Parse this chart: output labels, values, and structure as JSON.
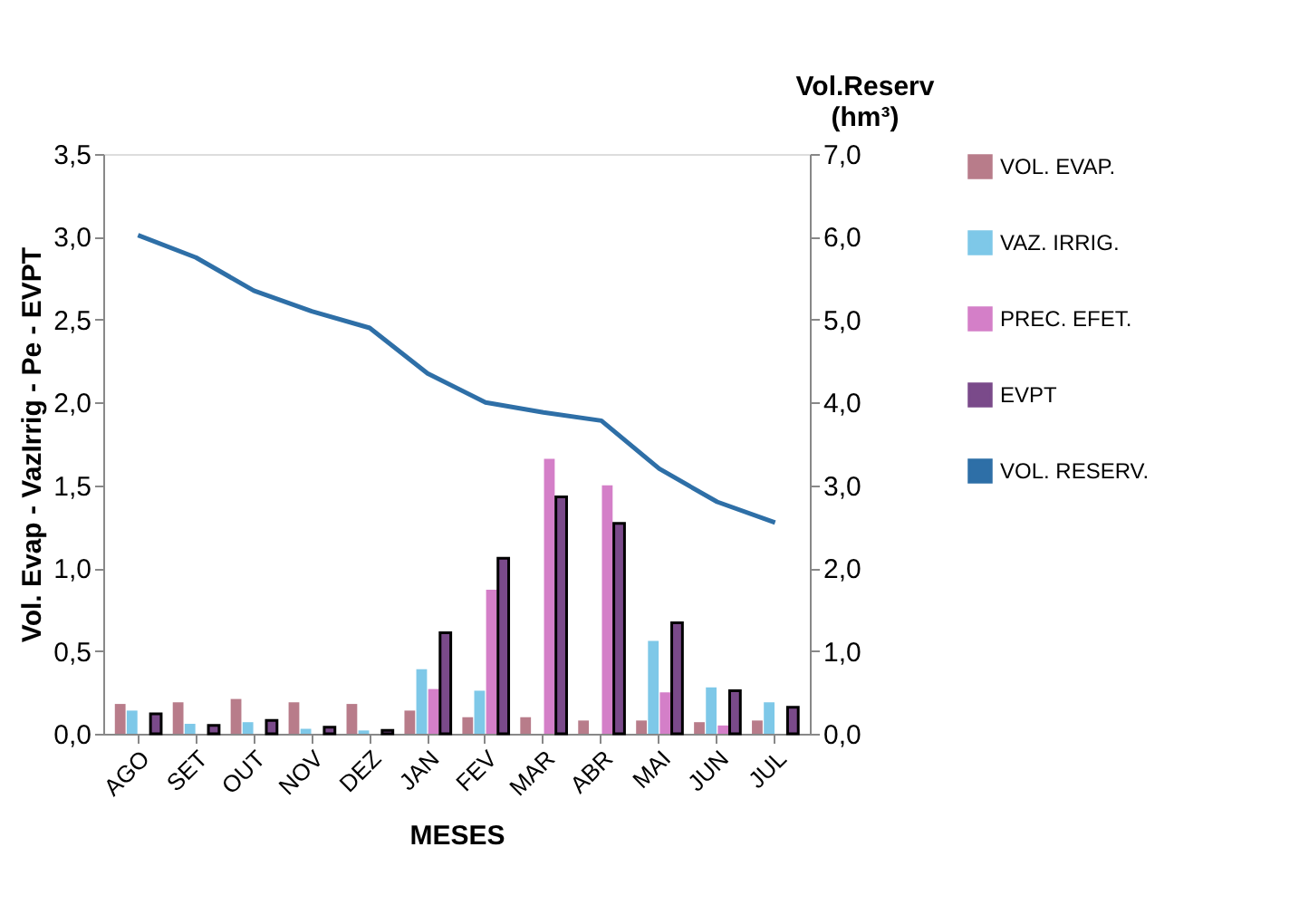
{
  "chart_data": {
    "type": "bar",
    "xlabel": "MESES",
    "ylabel": "Vol. Evap - VazIrrig - Pe - EVPT",
    "y2label": "Vol.Reserv (hm³)",
    "categories": [
      "AGO",
      "SET",
      "OUT",
      "NOV",
      "DEZ",
      "JAN",
      "FEV",
      "MAR",
      "ABR",
      "MAI",
      "JUN",
      "JUL"
    ],
    "series": [
      {
        "name": "VOL. EVAP.",
        "color": "#b87c8a",
        "values": [
          0.18,
          0.19,
          0.21,
          0.19,
          0.18,
          0.14,
          0.1,
          0.1,
          0.08,
          0.08,
          0.07,
          0.08
        ]
      },
      {
        "name": "VAZ. IRRIG.",
        "color": "#7ec8e8",
        "values": [
          0.14,
          0.06,
          0.07,
          0.03,
          0.02,
          0.39,
          0.26,
          0,
          0,
          0.56,
          0.28,
          0.19
        ]
      },
      {
        "name": "PREC. EFET.",
        "color": "#d47fc8",
        "values": [
          0,
          0,
          0,
          0,
          0,
          0.27,
          0.87,
          1.66,
          1.5,
          0.25,
          0.05,
          0
        ]
      },
      {
        "name": "EVPT",
        "color": "#7a4a8a",
        "values": [
          0.12,
          0.05,
          0.08,
          0.04,
          0.02,
          0.61,
          1.06,
          1.43,
          1.27,
          0.67,
          0.26,
          0.16
        ]
      },
      {
        "name": "VOL. RESERV.",
        "color": "#2e6fa7",
        "type": "line",
        "axis": "y2",
        "values": [
          6.02,
          5.75,
          5.35,
          5.1,
          4.9,
          4.35,
          4.0,
          3.88,
          3.78,
          3.2,
          2.8,
          2.55
        ]
      }
    ],
    "ylim": [
      0,
      3.5
    ],
    "yticks": [
      {
        "value": 0,
        "label": "0,0"
      },
      {
        "value": 0.5,
        "label": "0,5"
      },
      {
        "value": 1,
        "label": "1,0"
      },
      {
        "value": 1.5,
        "label": "1,5"
      },
      {
        "value": 2,
        "label": "2,0"
      },
      {
        "value": 2.5,
        "label": "2,5"
      },
      {
        "value": 3,
        "label": "3,0"
      },
      {
        "value": 3.5,
        "label": "3,5"
      }
    ],
    "y2lim": [
      0,
      7
    ],
    "y2ticks": [
      {
        "value": 0,
        "label": "0,0"
      },
      {
        "value": 1,
        "label": "1,0"
      },
      {
        "value": 2,
        "label": "2,0"
      },
      {
        "value": 3,
        "label": "3,0"
      },
      {
        "value": 4,
        "label": "4,0"
      },
      {
        "value": 5,
        "label": "5,0"
      },
      {
        "value": 6,
        "label": "6,0"
      },
      {
        "value": 7,
        "label": "7,0"
      }
    ],
    "legend": "right",
    "grid": false,
    "marker": "none"
  }
}
